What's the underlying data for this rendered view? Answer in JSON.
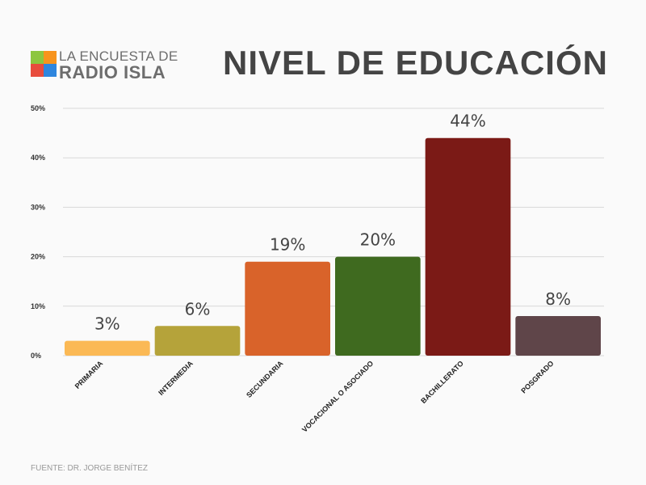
{
  "logo": {
    "line1": "LA ENCUESTA DE",
    "line2": "RADIO ISLA",
    "colors": [
      "#8dc63f",
      "#f7941d",
      "#e84c3d",
      "#2e86de"
    ]
  },
  "title": "NIVEL DE EDUCACIÓN",
  "footer": "FUENTE: DR. JORGE BENÍTEZ",
  "chart_data": {
    "type": "bar",
    "title": "NIVEL DE EDUCACIÓN",
    "categories": [
      "PRIMARIA",
      "INTERMEDIA",
      "SECUNDARIA",
      "VOCACIONAL O ASOCIADO",
      "BACHILLERATO",
      "POSGRADO"
    ],
    "values": [
      3,
      6,
      19,
      20,
      44,
      8
    ],
    "data_labels": [
      "3%",
      "6%",
      "19%",
      "20%",
      "44%",
      "8%"
    ],
    "colors": [
      "#fbb955",
      "#b5a33a",
      "#d9632a",
      "#3f6a1f",
      "#7b1a16",
      "#5f4549"
    ],
    "ylim": [
      0,
      50
    ],
    "yticks": [
      "0%",
      "10%",
      "20%",
      "30%",
      "40%",
      "50%"
    ],
    "xlabel": "",
    "ylabel": "",
    "grid": true
  }
}
